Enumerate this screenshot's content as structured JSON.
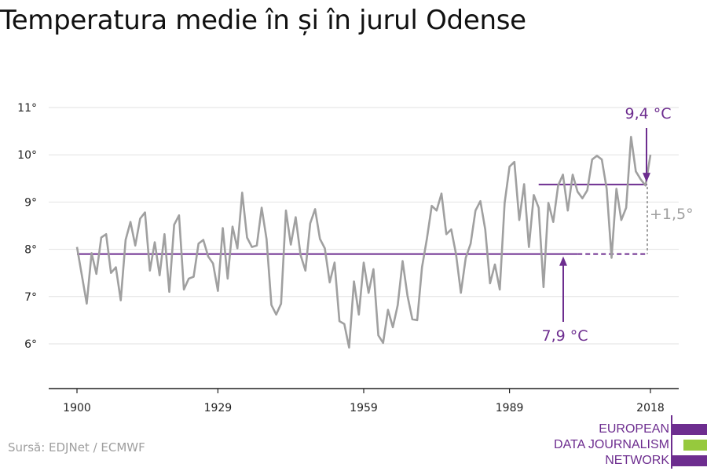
{
  "title": "Temperatura medie în și în jurul Odense",
  "source": "Sursă: EDJNet / ECMWF",
  "logo": {
    "line1": "EUROPEAN",
    "line2": "DATA JOURNALISM",
    "line3": "NETWORK",
    "colors": [
      "#6d2d8f",
      "#96c93d",
      "#6d2d8f"
    ]
  },
  "colors": {
    "series": "#a0a0a0",
    "accent": "#6d2d8f",
    "grid": "#e2e2e2",
    "axis": "#222222",
    "annotation_gray": "#a0a0a0"
  },
  "chart_data": {
    "type": "line",
    "title": "Temperatura medie în și în jurul Odense",
    "xlabel": "",
    "ylabel": "",
    "xlim": [
      1900,
      2018
    ],
    "ylim": [
      5,
      11
    ],
    "grid": true,
    "x_ticks": [
      1900,
      1929,
      1959,
      1989,
      2018
    ],
    "x_tick_labels": [
      "1900",
      "1929",
      "1959",
      "1989",
      "2018"
    ],
    "y_ticks": [
      6,
      7,
      8,
      9,
      10,
      11
    ],
    "y_tick_labels": [
      "6°",
      "7°",
      "8°",
      "9°",
      "10°",
      "11°"
    ],
    "series": [
      {
        "x": [
          1900,
          1901,
          1902,
          1903,
          1904,
          1905,
          1906,
          1907,
          1908,
          1909,
          1910,
          1911,
          1912,
          1913,
          1914,
          1915,
          1916,
          1917,
          1918,
          1919,
          1920,
          1921,
          1922,
          1923,
          1924,
          1925,
          1926,
          1927,
          1928,
          1929,
          1930,
          1931,
          1932,
          1933,
          1934,
          1935,
          1936,
          1937,
          1938,
          1939,
          1940,
          1941,
          1942,
          1943,
          1944,
          1945,
          1946,
          1947,
          1948,
          1949,
          1950,
          1951,
          1952,
          1953,
          1954,
          1955,
          1956,
          1957,
          1958,
          1959,
          1960,
          1961,
          1962,
          1963,
          1964,
          1965,
          1966,
          1967,
          1968,
          1969,
          1970,
          1971,
          1972,
          1973,
          1974,
          1975,
          1976,
          1977,
          1978,
          1979,
          1980,
          1981,
          1982,
          1983,
          1984,
          1985,
          1986,
          1987,
          1988,
          1989,
          1990,
          1991,
          1992,
          1993,
          1994,
          1995,
          1996,
          1997,
          1998,
          1999,
          2000,
          2001,
          2002,
          2003,
          2004,
          2005,
          2006,
          2007,
          2008,
          2009,
          2010,
          2011,
          2012,
          2013,
          2014,
          2015,
          2016,
          2017,
          2018
        ],
        "values": [
          8.05,
          7.45,
          6.85,
          7.92,
          7.48,
          8.25,
          8.32,
          7.5,
          7.62,
          6.92,
          8.2,
          8.58,
          8.08,
          8.65,
          8.78,
          7.55,
          8.15,
          7.45,
          8.32,
          7.1,
          8.52,
          8.72,
          7.15,
          7.38,
          7.42,
          8.12,
          8.2,
          7.85,
          7.7,
          7.12,
          8.45,
          7.38,
          8.48,
          8.02,
          9.2,
          8.25,
          8.05,
          8.08,
          8.88,
          8.22,
          6.82,
          6.62,
          6.85,
          8.82,
          8.1,
          8.68,
          7.88,
          7.55,
          8.55,
          8.85,
          8.22,
          8.02,
          7.3,
          7.72,
          6.48,
          6.42,
          5.92,
          7.32,
          6.62,
          7.72,
          7.08,
          7.58,
          6.18,
          6.02,
          6.72,
          6.35,
          6.82,
          7.75,
          7.02,
          6.52,
          6.5,
          7.62,
          8.22,
          8.92,
          8.82,
          9.18,
          8.32,
          8.42,
          7.9,
          7.08,
          7.82,
          8.12,
          8.82,
          9.02,
          8.42,
          7.28,
          7.68,
          7.15,
          8.98,
          9.75,
          9.85,
          8.62,
          9.38,
          8.05,
          9.15,
          8.88,
          7.2,
          8.98,
          8.58,
          9.35,
          9.58,
          8.82,
          9.58,
          9.22,
          9.08,
          9.25,
          9.9,
          9.98,
          9.9,
          9.28,
          7.82,
          9.28,
          8.62,
          8.88,
          10.38,
          9.65,
          9.48,
          9.35,
          10.0
        ]
      }
    ],
    "annotations": [
      {
        "label": "7,9 °C",
        "value": 7.9,
        "from": 1900,
        "to": 2018
      },
      {
        "label": "9,4 °C",
        "value": 9.37,
        "from": 1995,
        "to": 2018
      },
      {
        "label": "+1,5°"
      }
    ]
  }
}
